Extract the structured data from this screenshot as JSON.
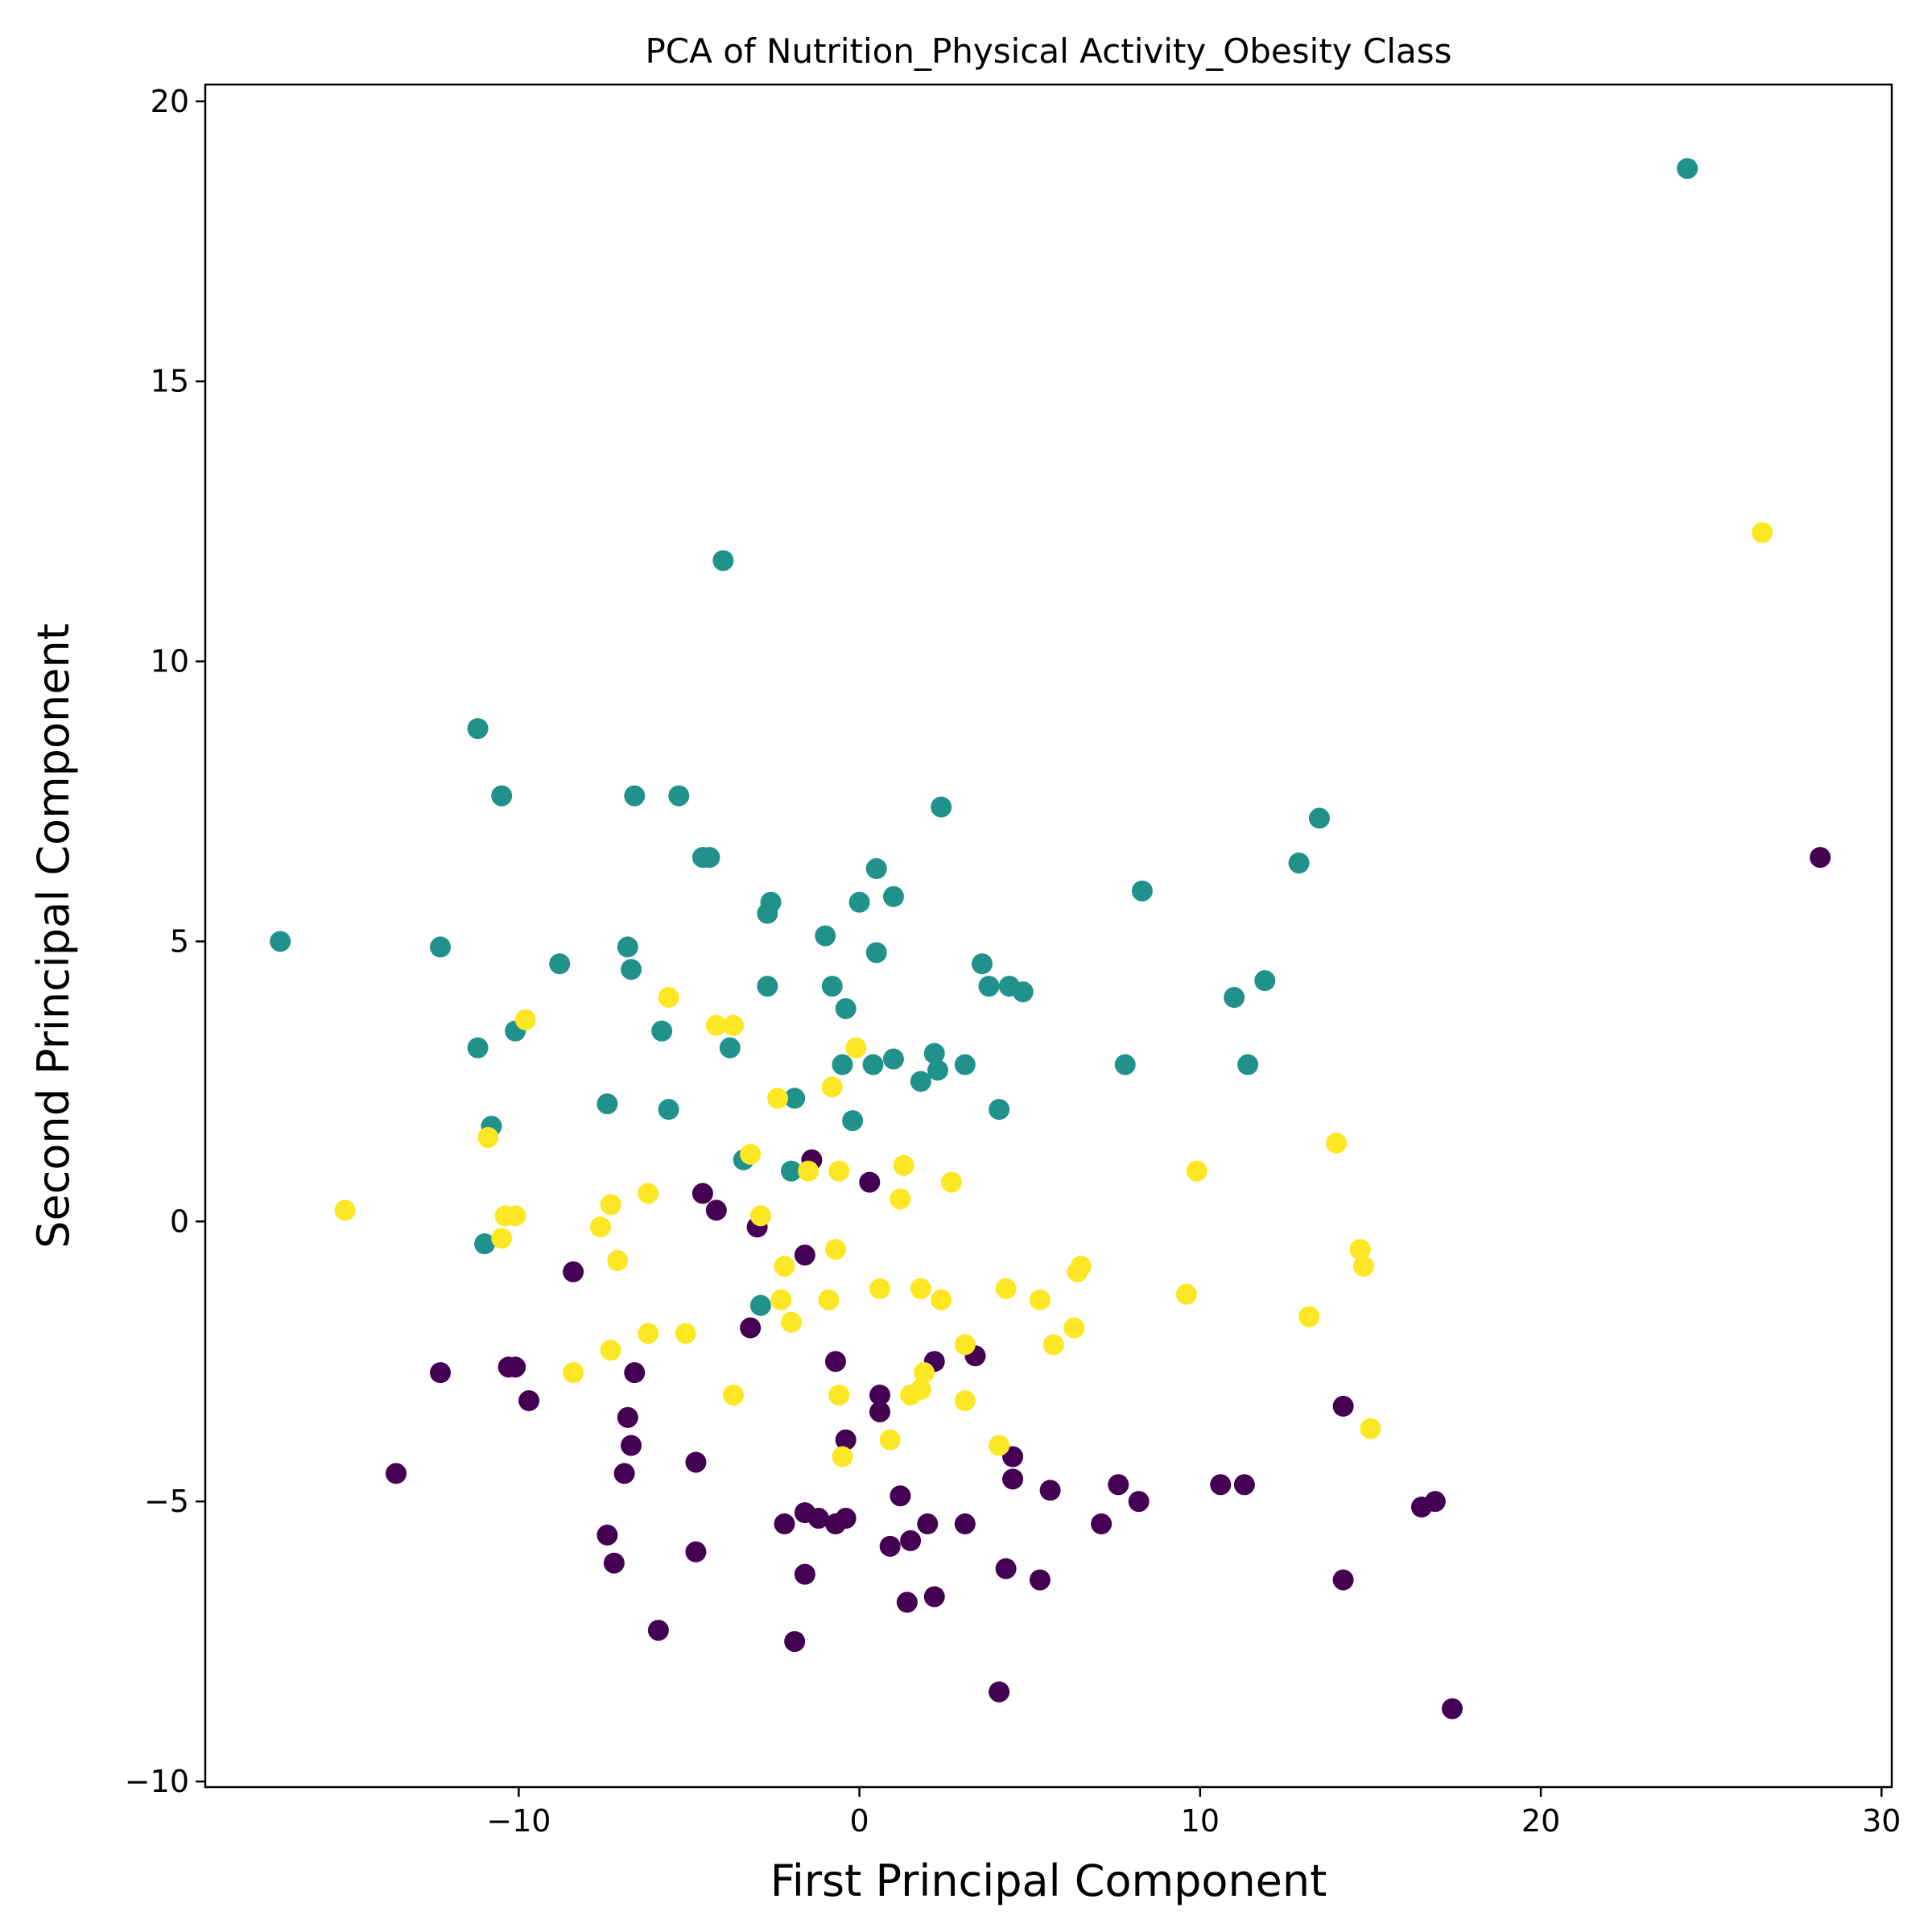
{
  "chart_data": {
    "type": "scatter",
    "title": "PCA of Nutrition_Physical Activity_Obesity Class",
    "xlabel": "First Principal Component",
    "ylabel": "Second Principal Component",
    "xlim": [
      -19.2,
      30.3
    ],
    "ylim": [
      -10.1,
      20.3
    ],
    "xticks": [
      -10,
      0,
      10,
      20,
      30
    ],
    "yticks": [
      -10,
      -5,
      0,
      5,
      10,
      15,
      20
    ],
    "xtick_labels": [
      "−10",
      "0",
      "10",
      "20",
      "30"
    ],
    "ytick_labels": [
      "−10",
      "−5",
      "0",
      "5",
      "10",
      "15",
      "20"
    ],
    "grid": false,
    "legend": "none",
    "series": [
      {
        "color": "#440154",
        "points": [
          [
            28.2,
            6.5
          ],
          [
            -8.4,
            -0.9
          ],
          [
            -12.3,
            -2.7
          ],
          [
            -10.3,
            -2.6
          ],
          [
            -10.1,
            -2.6
          ],
          [
            -9.7,
            -3.2
          ],
          [
            -13.6,
            -4.5
          ],
          [
            -6.6,
            -2.7
          ],
          [
            -6.8,
            -3.5
          ],
          [
            -6.7,
            -4.0
          ],
          [
            -6.9,
            -4.5
          ],
          [
            -4.8,
            -4.3
          ],
          [
            -7.4,
            -5.6
          ],
          [
            -7.2,
            -6.1
          ],
          [
            -4.8,
            -5.9
          ],
          [
            -5.9,
            -7.3
          ],
          [
            -4.6,
            0.5
          ],
          [
            -4.2,
            0.2
          ],
          [
            -3.0,
            -0.1
          ],
          [
            -1.4,
            1.1
          ],
          [
            -1.6,
            -0.6
          ],
          [
            -3.2,
            -1.9
          ],
          [
            -0.7,
            -2.5
          ],
          [
            0.3,
            0.7
          ],
          [
            0.6,
            -3.1
          ],
          [
            0.6,
            -3.4
          ],
          [
            -0.4,
            -3.9
          ],
          [
            2.2,
            -2.5
          ],
          [
            3.4,
            -2.4
          ],
          [
            4.5,
            -4.2
          ],
          [
            4.5,
            -4.6
          ],
          [
            1.2,
            -4.9
          ],
          [
            -2.2,
            -5.4
          ],
          [
            -1.6,
            -5.2
          ],
          [
            -1.2,
            -5.3
          ],
          [
            -0.7,
            -5.4
          ],
          [
            -0.4,
            -5.3
          ],
          [
            0.9,
            -5.8
          ],
          [
            1.5,
            -5.7
          ],
          [
            2.0,
            -5.4
          ],
          [
            3.1,
            -5.4
          ],
          [
            -1.6,
            -6.3
          ],
          [
            -1.9,
            -7.5
          ],
          [
            1.4,
            -6.8
          ],
          [
            2.2,
            -6.7
          ],
          [
            4.3,
            -6.2
          ],
          [
            5.3,
            -6.4
          ],
          [
            4.1,
            -8.4
          ],
          [
            5.6,
            -4.8
          ],
          [
            7.1,
            -5.4
          ],
          [
            7.6,
            -4.7
          ],
          [
            8.2,
            -5.0
          ],
          [
            10.6,
            -4.7
          ],
          [
            11.3,
            -4.7
          ],
          [
            14.2,
            -3.3
          ],
          [
            14.2,
            -6.4
          ],
          [
            16.5,
            -5.1
          ],
          [
            16.9,
            -5.0
          ],
          [
            17.4,
            -8.7
          ]
        ]
      },
      {
        "color": "#21918c",
        "points": [
          [
            24.3,
            18.8
          ],
          [
            -4.0,
            11.8
          ],
          [
            -11.2,
            8.8
          ],
          [
            -10.5,
            7.6
          ],
          [
            -6.6,
            7.6
          ],
          [
            -5.3,
            7.6
          ],
          [
            2.4,
            7.4
          ],
          [
            13.5,
            7.2
          ],
          [
            12.9,
            6.4
          ],
          [
            -4.6,
            6.5
          ],
          [
            -4.4,
            6.5
          ],
          [
            0.5,
            6.3
          ],
          [
            8.3,
            5.9
          ],
          [
            -2.6,
            5.7
          ],
          [
            -2.7,
            5.5
          ],
          [
            0.0,
            5.7
          ],
          [
            1.0,
            5.8
          ],
          [
            -1.0,
            5.1
          ],
          [
            0.5,
            4.8
          ],
          [
            -17.0,
            5.0
          ],
          [
            -12.3,
            4.9
          ],
          [
            -6.8,
            4.9
          ],
          [
            -6.7,
            4.5
          ],
          [
            -8.8,
            4.6
          ],
          [
            -2.7,
            4.2
          ],
          [
            -0.8,
            4.2
          ],
          [
            -0.4,
            3.8
          ],
          [
            3.6,
            4.6
          ],
          [
            3.8,
            4.2
          ],
          [
            4.4,
            4.2
          ],
          [
            4.8,
            4.1
          ],
          [
            11.0,
            4.0
          ],
          [
            11.9,
            4.3
          ],
          [
            -11.2,
            3.1
          ],
          [
            -10.1,
            3.4
          ],
          [
            -5.8,
            3.4
          ],
          [
            -3.8,
            3.1
          ],
          [
            -0.5,
            2.8
          ],
          [
            0.4,
            2.8
          ],
          [
            1.0,
            2.9
          ],
          [
            2.2,
            3.0
          ],
          [
            2.3,
            2.7
          ],
          [
            3.1,
            2.8
          ],
          [
            1.8,
            2.5
          ],
          [
            -1.9,
            2.2
          ],
          [
            -7.4,
            2.1
          ],
          [
            -5.6,
            2.0
          ],
          [
            4.1,
            2.0
          ],
          [
            7.8,
            2.8
          ],
          [
            11.4,
            2.8
          ],
          [
            -10.8,
            1.7
          ],
          [
            -0.2,
            1.8
          ],
          [
            -3.4,
            1.1
          ],
          [
            -2.0,
            0.9
          ],
          [
            -11.0,
            -0.4
          ],
          [
            -2.9,
            -1.5
          ]
        ]
      },
      {
        "color": "#fde725",
        "points": [
          [
            26.5,
            12.3
          ],
          [
            -9.8,
            3.6
          ],
          [
            -5.6,
            4.0
          ],
          [
            -4.2,
            3.5
          ],
          [
            -3.7,
            3.5
          ],
          [
            -0.1,
            3.1
          ],
          [
            -0.8,
            2.4
          ],
          [
            -2.4,
            2.2
          ],
          [
            -10.9,
            1.5
          ],
          [
            -3.2,
            1.2
          ],
          [
            -1.5,
            0.9
          ],
          [
            -0.6,
            0.9
          ],
          [
            1.3,
            1.0
          ],
          [
            2.7,
            0.7
          ],
          [
            9.9,
            0.9
          ],
          [
            14.0,
            1.4
          ],
          [
            -15.1,
            0.2
          ],
          [
            -10.4,
            0.1
          ],
          [
            -10.1,
            0.1
          ],
          [
            -7.3,
            0.3
          ],
          [
            -6.2,
            0.5
          ],
          [
            -2.9,
            0.1
          ],
          [
            1.2,
            0.4
          ],
          [
            -10.5,
            -0.3
          ],
          [
            -7.6,
            -0.1
          ],
          [
            -7.1,
            -0.7
          ],
          [
            -2.2,
            -0.8
          ],
          [
            -0.7,
            -0.5
          ],
          [
            6.4,
            -0.9
          ],
          [
            6.5,
            -0.8
          ],
          [
            14.7,
            -0.5
          ],
          [
            14.8,
            -0.8
          ],
          [
            -2.3,
            -1.4
          ],
          [
            -0.9,
            -1.4
          ],
          [
            0.6,
            -1.2
          ],
          [
            1.8,
            -1.2
          ],
          [
            2.4,
            -1.4
          ],
          [
            4.3,
            -1.2
          ],
          [
            5.3,
            -1.4
          ],
          [
            9.6,
            -1.3
          ],
          [
            13.2,
            -1.7
          ],
          [
            -2.0,
            -1.8
          ],
          [
            -6.2,
            -2.0
          ],
          [
            -5.1,
            -2.0
          ],
          [
            -7.3,
            -2.3
          ],
          [
            -8.4,
            -2.7
          ],
          [
            3.1,
            -2.2
          ],
          [
            5.7,
            -2.2
          ],
          [
            6.3,
            -1.9
          ],
          [
            1.9,
            -2.7
          ],
          [
            1.8,
            -3.0
          ],
          [
            1.5,
            -3.1
          ],
          [
            -0.6,
            -3.1
          ],
          [
            3.1,
            -3.2
          ],
          [
            -3.7,
            -3.1
          ],
          [
            0.9,
            -3.9
          ],
          [
            -0.5,
            -4.2
          ],
          [
            4.1,
            -4.0
          ],
          [
            15.0,
            -3.7
          ]
        ]
      }
    ]
  }
}
